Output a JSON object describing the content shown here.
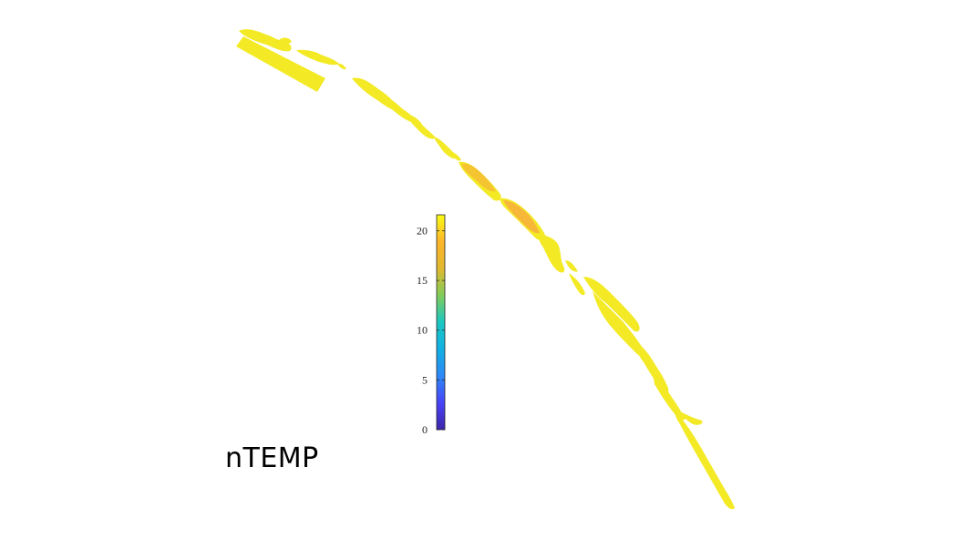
{
  "figure": {
    "title": "nTEMP"
  },
  "colorbar": {
    "ticks": [
      0,
      5,
      10,
      15,
      20
    ],
    "min": 0,
    "max": 21.6,
    "colormap": [
      "#3e26a8",
      "#4743f8",
      "#2c88f6",
      "#13b0e3",
      "#1ac7c2",
      "#81cc59",
      "#e1b930",
      "#fdb52a",
      "#f9fb15"
    ]
  },
  "field": {
    "colors": {
      "high": "#f3ea25",
      "warm": "#f5c431",
      "warmer": "#f7b83a"
    }
  }
}
